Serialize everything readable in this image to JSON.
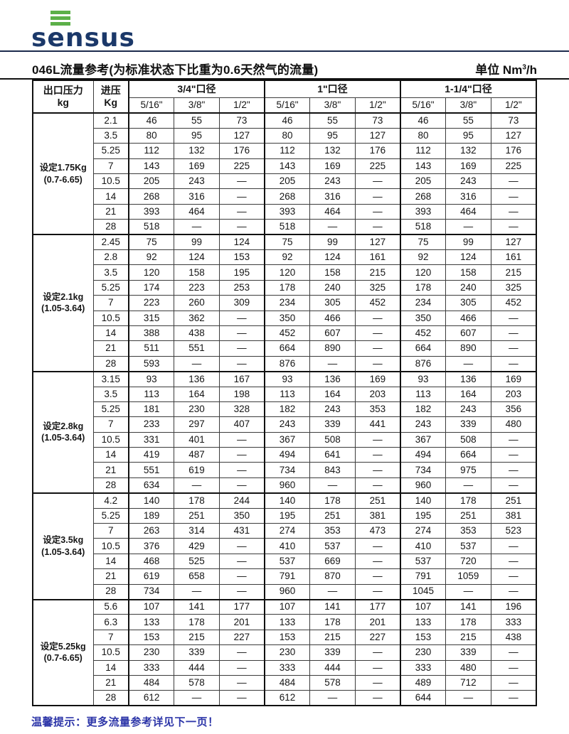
{
  "logo": {
    "text": "sensus",
    "brand_blue": "#1b3869",
    "brand_green": "#5cb049"
  },
  "title": "046L流量参考(为标准状态下比重为0.6天然气的流量)",
  "unit": {
    "prefix": "单位 Nm",
    "sup": "3",
    "suffix": "/h"
  },
  "table": {
    "col1_header_line1": "出口压力",
    "col1_header_line2": "kg",
    "col2_header_line1": "进压",
    "col2_header_line2": "Kg",
    "sections": [
      "3/4\"口径",
      "1\"口径",
      "1-1/4\"口径"
    ],
    "subcols": [
      "5/16\"",
      "3/8\"",
      "1/2\""
    ],
    "groups": [
      {
        "label_line1": "设定1.75Kg",
        "label_line2": "(0.7-6.65)",
        "rows": [
          {
            "inlet": "2.1",
            "values": [
              "46",
              "55",
              "73",
              "46",
              "55",
              "73",
              "46",
              "55",
              "73"
            ]
          },
          {
            "inlet": "3.5",
            "values": [
              "80",
              "95",
              "127",
              "80",
              "95",
              "127",
              "80",
              "95",
              "127"
            ]
          },
          {
            "inlet": "5.25",
            "values": [
              "112",
              "132",
              "176",
              "112",
              "132",
              "176",
              "112",
              "132",
              "176"
            ]
          },
          {
            "inlet": "7",
            "values": [
              "143",
              "169",
              "225",
              "143",
              "169",
              "225",
              "143",
              "169",
              "225"
            ]
          },
          {
            "inlet": "10.5",
            "values": [
              "205",
              "243",
              "—",
              "205",
              "243",
              "—",
              "205",
              "243",
              "—"
            ]
          },
          {
            "inlet": "14",
            "values": [
              "268",
              "316",
              "—",
              "268",
              "316",
              "—",
              "268",
              "316",
              "—"
            ]
          },
          {
            "inlet": "21",
            "values": [
              "393",
              "464",
              "—",
              "393",
              "464",
              "—",
              "393",
              "464",
              "—"
            ]
          },
          {
            "inlet": "28",
            "values": [
              "518",
              "—",
              "—",
              "518",
              "—",
              "—",
              "518",
              "—",
              "—"
            ]
          }
        ]
      },
      {
        "label_line1": "设定2.1kg",
        "label_line2": "(1.05-3.64)",
        "rows": [
          {
            "inlet": "2.45",
            "values": [
              "75",
              "99",
              "124",
              "75",
              "99",
              "127",
              "75",
              "99",
              "127"
            ]
          },
          {
            "inlet": "2.8",
            "values": [
              "92",
              "124",
              "153",
              "92",
              "124",
              "161",
              "92",
              "124",
              "161"
            ]
          },
          {
            "inlet": "3.5",
            "values": [
              "120",
              "158",
              "195",
              "120",
              "158",
              "215",
              "120",
              "158",
              "215"
            ]
          },
          {
            "inlet": "5.25",
            "values": [
              "174",
              "223",
              "253",
              "178",
              "240",
              "325",
              "178",
              "240",
              "325"
            ]
          },
          {
            "inlet": "7",
            "values": [
              "223",
              "260",
              "309",
              "234",
              "305",
              "452",
              "234",
              "305",
              "452"
            ]
          },
          {
            "inlet": "10.5",
            "values": [
              "315",
              "362",
              "—",
              "350",
              "466",
              "—",
              "350",
              "466",
              "—"
            ]
          },
          {
            "inlet": "14",
            "values": [
              "388",
              "438",
              "—",
              "452",
              "607",
              "—",
              "452",
              "607",
              "—"
            ]
          },
          {
            "inlet": "21",
            "values": [
              "511",
              "551",
              "—",
              "664",
              "890",
              "—",
              "664",
              "890",
              "—"
            ]
          },
          {
            "inlet": "28",
            "values": [
              "593",
              "—",
              "—",
              "876",
              "—",
              "—",
              "876",
              "—",
              "—"
            ]
          }
        ]
      },
      {
        "label_line1": "设定2.8kg",
        "label_line2": "(1.05-3.64)",
        "rows": [
          {
            "inlet": "3.15",
            "values": [
              "93",
              "136",
              "167",
              "93",
              "136",
              "169",
              "93",
              "136",
              "169"
            ]
          },
          {
            "inlet": "3.5",
            "values": [
              "113",
              "164",
              "198",
              "113",
              "164",
              "203",
              "113",
              "164",
              "203"
            ]
          },
          {
            "inlet": "5.25",
            "values": [
              "181",
              "230",
              "328",
              "182",
              "243",
              "353",
              "182",
              "243",
              "356"
            ]
          },
          {
            "inlet": "7",
            "values": [
              "233",
              "297",
              "407",
              "243",
              "339",
              "441",
              "243",
              "339",
              "480"
            ]
          },
          {
            "inlet": "10.5",
            "values": [
              "331",
              "401",
              "—",
              "367",
              "508",
              "—",
              "367",
              "508",
              "—"
            ]
          },
          {
            "inlet": "14",
            "values": [
              "419",
              "487",
              "—",
              "494",
              "641",
              "—",
              "494",
              "664",
              "—"
            ]
          },
          {
            "inlet": "21",
            "values": [
              "551",
              "619",
              "—",
              "734",
              "843",
              "—",
              "734",
              "975",
              "—"
            ]
          },
          {
            "inlet": "28",
            "values": [
              "634",
              "—",
              "—",
              "960",
              "—",
              "—",
              "960",
              "—",
              "—"
            ]
          }
        ]
      },
      {
        "label_line1": "设定3.5kg",
        "label_line2": "(1.05-3.64)",
        "rows": [
          {
            "inlet": "4.2",
            "values": [
              "140",
              "178",
              "244",
              "140",
              "178",
              "251",
              "140",
              "178",
              "251"
            ]
          },
          {
            "inlet": "5.25",
            "values": [
              "189",
              "251",
              "350",
              "195",
              "251",
              "381",
              "195",
              "251",
              "381"
            ]
          },
          {
            "inlet": "7",
            "values": [
              "263",
              "314",
              "431",
              "274",
              "353",
              "473",
              "274",
              "353",
              "523"
            ]
          },
          {
            "inlet": "10.5",
            "values": [
              "376",
              "429",
              "—",
              "410",
              "537",
              "—",
              "410",
              "537",
              "—"
            ]
          },
          {
            "inlet": "14",
            "values": [
              "468",
              "525",
              "—",
              "537",
              "669",
              "—",
              "537",
              "720",
              "—"
            ]
          },
          {
            "inlet": "21",
            "values": [
              "619",
              "658",
              "—",
              "791",
              "870",
              "—",
              "791",
              "1059",
              "—"
            ]
          },
          {
            "inlet": "28",
            "values": [
              "734",
              "—",
              "—",
              "960",
              "—",
              "—",
              "1045",
              "—",
              "—"
            ]
          }
        ]
      },
      {
        "label_line1": "设定5.25kg",
        "label_line2": "(0.7-6.65)",
        "rows": [
          {
            "inlet": "5.6",
            "values": [
              "107",
              "141",
              "177",
              "107",
              "141",
              "177",
              "107",
              "141",
              "196"
            ]
          },
          {
            "inlet": "6.3",
            "values": [
              "133",
              "178",
              "201",
              "133",
              "178",
              "201",
              "133",
              "178",
              "333"
            ]
          },
          {
            "inlet": "7",
            "values": [
              "153",
              "215",
              "227",
              "153",
              "215",
              "227",
              "153",
              "215",
              "438"
            ]
          },
          {
            "inlet": "10.5",
            "values": [
              "230",
              "339",
              "—",
              "230",
              "339",
              "—",
              "230",
              "339",
              "—"
            ]
          },
          {
            "inlet": "14",
            "values": [
              "333",
              "444",
              "—",
              "333",
              "444",
              "—",
              "333",
              "480",
              "—"
            ]
          },
          {
            "inlet": "21",
            "values": [
              "484",
              "578",
              "—",
              "484",
              "578",
              "—",
              "489",
              "712",
              "—"
            ]
          },
          {
            "inlet": "28",
            "values": [
              "612",
              "—",
              "—",
              "612",
              "—",
              "—",
              "644",
              "—",
              "—"
            ]
          }
        ]
      }
    ]
  },
  "footer_note": "温馨提示：更多流量参考详见下一页！"
}
